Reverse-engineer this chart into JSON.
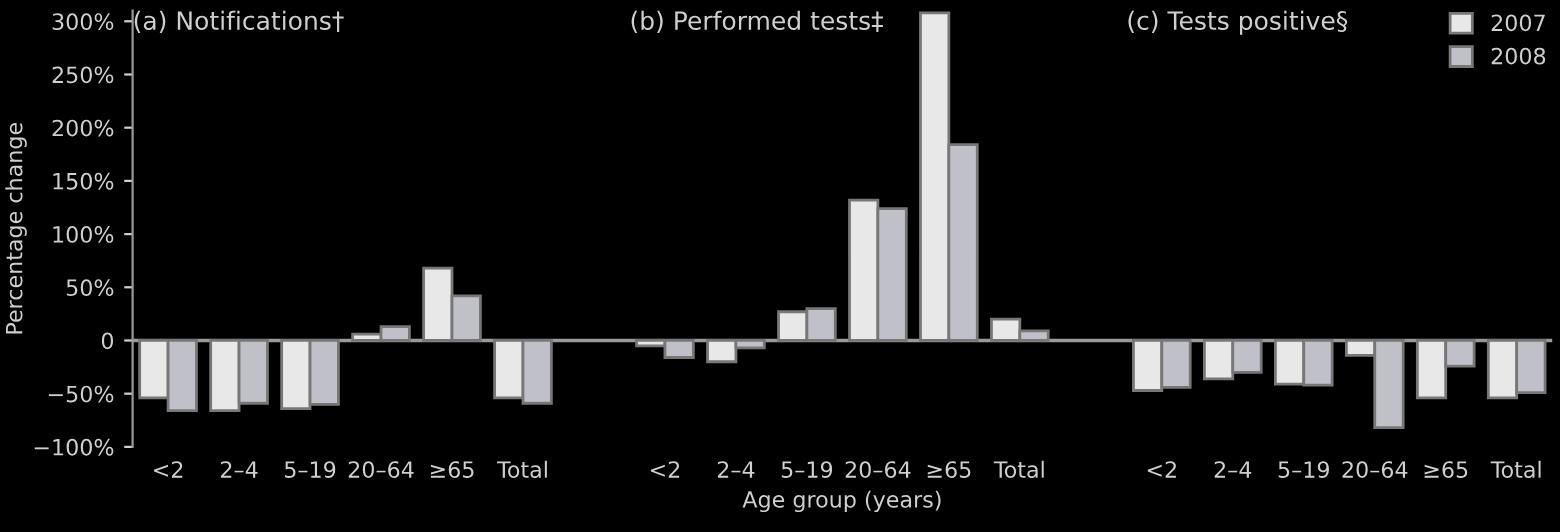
{
  "chart_data": {
    "type": "bar",
    "ylabel": "Percentage change",
    "xlabel": "Age group (years)",
    "annotations": [
      "(a) Notifications†",
      "(b) Performed tests‡",
      "(c) Tests positive§"
    ],
    "categories": [
      "<2",
      "2–4",
      "5–19",
      "20–64",
      "≥65",
      "Total",
      null,
      "<2",
      "2–4",
      "5–19",
      "20–64",
      "≥65",
      "Total",
      null,
      "<2",
      "2–4",
      "5–19",
      "20–64",
      "≥65",
      "Total"
    ],
    "series": [
      {
        "name": "2007",
        "color": "#e8e8e8",
        "values": [
          -54,
          -66,
          -64,
          6,
          68,
          -54,
          null,
          -5,
          -20,
          27,
          132,
          308,
          20,
          null,
          -47,
          -36,
          -41,
          -14,
          -54,
          -54
        ]
      },
      {
        "name": "2008",
        "color": "#c0c0c8",
        "values": [
          -66,
          -59,
          -60,
          13,
          42,
          -59,
          null,
          -16,
          -7,
          30,
          124,
          184,
          9,
          null,
          -44,
          -30,
          -42,
          -82,
          -24,
          -49
        ]
      }
    ],
    "ylim": [
      -100,
      310
    ],
    "yticks": [
      {
        "value": -100,
        "label": "−100%"
      },
      {
        "value": -50,
        "label": "−50%"
      },
      0,
      {
        "value": 50,
        "label": "50%"
      },
      {
        "value": 100,
        "label": "100%"
      },
      {
        "value": 150,
        "label": "150%"
      },
      {
        "value": 200,
        "label": "200%"
      },
      {
        "value": 250,
        "label": "250%"
      },
      {
        "value": 300,
        "label": "300%"
      }
    ],
    "legend": "top right"
  }
}
